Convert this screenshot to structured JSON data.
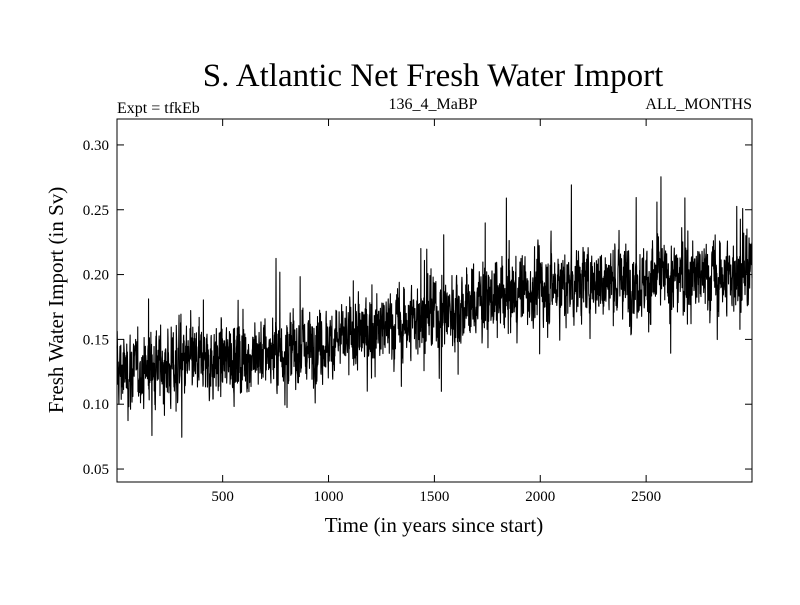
{
  "chart_data": {
    "type": "line",
    "title": "S. Atlantic Net Fresh Water Import",
    "subtitle_left": "Expt = tfkEb",
    "subtitle_center": "136_4_MaBP",
    "subtitle_right": "ALL_MONTHS",
    "xlabel": "Time (in years since start)",
    "ylabel": "Fresh Water Import (in Sv)",
    "xlim": [
      1,
      3000
    ],
    "ylim": [
      0.04,
      0.32
    ],
    "xticks": [
      500,
      1000,
      1500,
      2000,
      2500
    ],
    "xtick_labels": [
      "500",
      "1000",
      "1500",
      "2000",
      "2500"
    ],
    "yticks": [
      0.05,
      0.1,
      0.15,
      0.2,
      0.25,
      0.3
    ],
    "ytick_labels": [
      "0.05",
      "0.10",
      "0.15",
      "0.20",
      "0.25",
      "0.30"
    ],
    "grid": false,
    "series": [
      {
        "color": "#000000",
        "trend_x": [
          0,
          250,
          500,
          750,
          1000,
          1250,
          1500,
          1750,
          2000,
          2250,
          2500,
          2750,
          3000
        ],
        "trend_y": [
          0.125,
          0.13,
          0.135,
          0.14,
          0.147,
          0.158,
          0.17,
          0.18,
          0.19,
          0.195,
          0.196,
          0.198,
          0.2
        ],
        "noise_amplitude": 0.022,
        "min_value": 0.054,
        "max_value": 0.3
      }
    ]
  }
}
